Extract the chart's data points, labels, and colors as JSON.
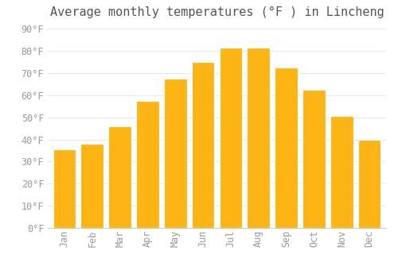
{
  "title": "Average monthly temperatures (°F ) in Lincheng",
  "months": [
    "Jan",
    "Feb",
    "Mar",
    "Apr",
    "May",
    "Jun",
    "Jul",
    "Aug",
    "Sep",
    "Oct",
    "Nov",
    "Dec"
  ],
  "values": [
    35.5,
    38.0,
    46.0,
    57.5,
    67.5,
    75.0,
    81.5,
    81.5,
    72.5,
    62.5,
    50.5,
    40.0
  ],
  "bar_color_top": "#FDB515",
  "bar_color_bottom": "#F5A623",
  "background_color": "#FFFFFF",
  "grid_color": "#E8E8E8",
  "ylim": [
    0,
    93
  ],
  "yticks": [
    0,
    10,
    20,
    30,
    40,
    50,
    60,
    70,
    80,
    90
  ],
  "title_fontsize": 11,
  "tick_fontsize": 8.5,
  "title_color": "#555555",
  "tick_color": "#999999",
  "bar_width": 0.82
}
